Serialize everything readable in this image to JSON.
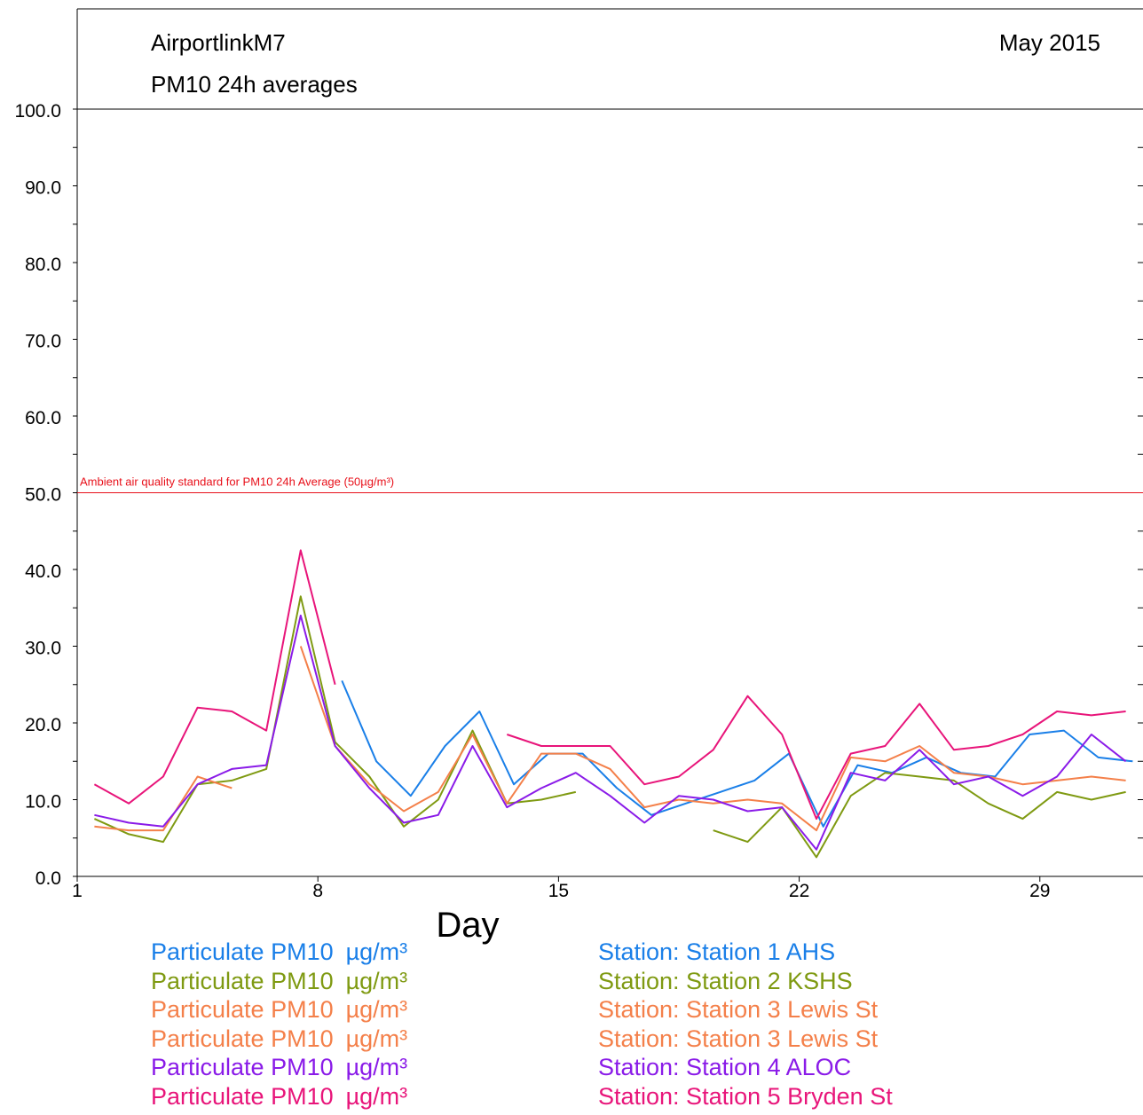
{
  "chart_data": {
    "type": "line",
    "title": "AirportlinkM7",
    "subtitle": "PM10 24h averages",
    "period": "May 2015",
    "xlabel": "Day",
    "ylabel": "",
    "xlim": [
      1,
      32
    ],
    "ylim": [
      0,
      100
    ],
    "x_ticks": [
      "1",
      "8",
      "15",
      "22",
      "29"
    ],
    "y_ticks": [
      "0.0",
      "10.0",
      "20.0",
      "30.0",
      "40.0",
      "50.0",
      "60.0",
      "70.0",
      "80.0",
      "90.0",
      "100.0"
    ],
    "grid": false,
    "legend_position": "bottom",
    "reference_line": {
      "value": 50,
      "label": "Ambient air quality standard for PM10 24h Average (50µg/m³)",
      "color": "#e8101a"
    },
    "series": [
      {
        "parameter": "Particulate PM10",
        "unit": "µg/m³",
        "station": "Station: Station 1 AHS",
        "color": "#1a7fe8",
        "x": [
          8.7,
          9.7,
          10.7,
          11.7,
          12.7,
          13.7,
          14.7,
          15.7,
          16.7,
          17.7,
          18.7,
          19.7,
          20.7,
          21.7,
          22.7,
          23.7,
          24.7,
          25.7,
          26.7,
          27.7,
          28.7,
          29.7,
          30.7,
          31.7
        ],
        "values": [
          25.5,
          15.0,
          10.5,
          17.0,
          21.5,
          12.0,
          16.0,
          16.0,
          11.5,
          8.0,
          9.5,
          11.0,
          12.5,
          16.0,
          6.5,
          14.5,
          13.5,
          15.5,
          13.5,
          13.0,
          18.5,
          19.0,
          15.5,
          15.0
        ]
      },
      {
        "parameter": "Particulate PM10",
        "unit": "µg/m³",
        "station": "Station: Station 2 KSHS",
        "color": "#7f9a12",
        "x": [
          1.5,
          2.5,
          3.5,
          4.5,
          5.5,
          6.5,
          7.5,
          8.5,
          9.5,
          10.5,
          11.5,
          12.5,
          13.5,
          14.5,
          15.5,
          16.5,
          17.5,
          18.5,
          19.5,
          20.5,
          21.5,
          22.5,
          23.5,
          24.5,
          25.5,
          26.5,
          27.5,
          28.5,
          29.5,
          30.5,
          31.5
        ],
        "values": [
          7.5,
          5.5,
          4.5,
          12.0,
          12.5,
          14.0,
          36.5,
          17.5,
          13.0,
          6.5,
          10.0,
          19.0,
          9.5,
          10.0,
          11.0,
          null,
          null,
          null,
          6.0,
          4.5,
          9.0,
          2.5,
          10.5,
          13.5,
          13.0,
          12.5,
          9.5,
          7.5,
          11.0,
          10.0,
          11.0
        ]
      },
      {
        "parameter": "Particulate PM10",
        "unit": "µg/m³",
        "station": "Station: Station 3 Lewis St",
        "color": "#f4804a",
        "x": [
          1.5,
          2.5,
          3.5,
          4.5,
          5.5
        ],
        "values": [
          6.5,
          6.0,
          6.0,
          13.0,
          11.5
        ]
      },
      {
        "parameter": "Particulate PM10",
        "unit": "µg/m³",
        "station": "Station: Station 3 Lewis St",
        "color": "#f4804a",
        "x": [
          7.5,
          8.5,
          9.5,
          10.5,
          11.5,
          12.5,
          13.5,
          14.5,
          15.5,
          16.5,
          17.5,
          18.5,
          19.5,
          20.5,
          21.5,
          22.5,
          23.5,
          24.5,
          25.5,
          26.5,
          27.5,
          28.5,
          29.5,
          30.5,
          31.5
        ],
        "values": [
          30.0,
          17.0,
          12.0,
          8.5,
          11.0,
          18.5,
          9.5,
          16.0,
          16.0,
          14.0,
          9.0,
          10.0,
          9.5,
          10.0,
          9.5,
          6.0,
          15.5,
          15.0,
          17.0,
          13.5,
          13.0,
          12.0,
          12.5,
          13.0,
          12.5
        ]
      },
      {
        "parameter": "Particulate PM10",
        "unit": "µg/m³",
        "station": "Station: Station 4 ALOC",
        "color": "#8a1be8",
        "x": [
          1.5,
          2.5,
          3.5,
          4.5,
          5.5,
          6.5,
          7.5,
          8.5,
          9.5,
          10.5,
          11.5,
          12.5,
          13.5,
          14.5,
          15.5,
          16.5,
          17.5,
          18.5,
          19.5,
          20.5,
          21.5,
          22.5,
          23.5,
          24.5,
          25.5,
          26.5,
          27.5,
          28.5,
          29.5,
          30.5,
          31.5
        ],
        "values": [
          8.0,
          7.0,
          6.5,
          12.0,
          14.0,
          14.5,
          34.0,
          17.0,
          11.5,
          7.0,
          8.0,
          17.0,
          9.0,
          11.5,
          13.5,
          10.5,
          7.0,
          10.5,
          10.0,
          8.5,
          9.0,
          3.5,
          13.5,
          12.5,
          16.5,
          12.0,
          13.0,
          10.5,
          13.0,
          18.5,
          15.0
        ]
      },
      {
        "parameter": "Particulate PM10",
        "unit": "µg/m³",
        "station": "Station: Station 5 Bryden St",
        "color": "#e8157a",
        "x": [
          1.5,
          2.5,
          3.5,
          4.5,
          5.5,
          6.5,
          7.5,
          8.5,
          9.5,
          10.5,
          11.5,
          12.5,
          13.5,
          14.5,
          15.5,
          16.5,
          17.5,
          18.5,
          19.5,
          20.5,
          21.5,
          22.5,
          23.5,
          24.5,
          25.5,
          26.5,
          27.5,
          28.5,
          29.5,
          30.5,
          31.5
        ],
        "values": [
          12.0,
          9.5,
          13.0,
          22.0,
          21.5,
          19.0,
          42.5,
          25.0,
          null,
          null,
          null,
          null,
          18.5,
          17.0,
          17.0,
          17.0,
          12.0,
          13.0,
          16.5,
          23.5,
          18.5,
          7.5,
          16.0,
          17.0,
          22.5,
          16.5,
          17.0,
          18.5,
          21.5,
          21.0,
          21.5
        ]
      }
    ]
  }
}
